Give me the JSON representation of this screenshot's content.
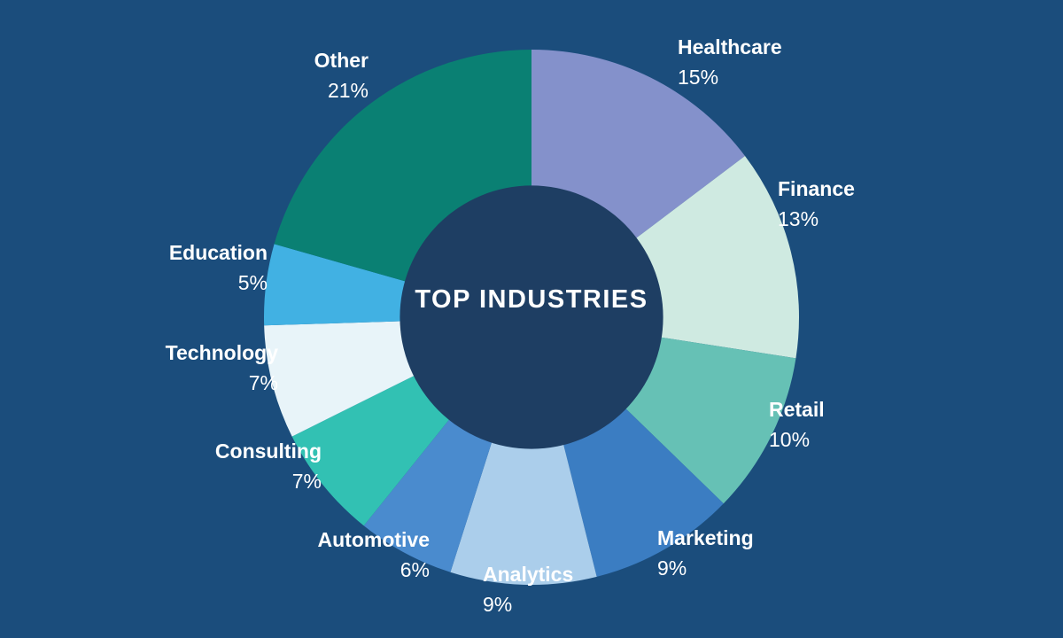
{
  "page": {
    "background_color": "#1b4d7c"
  },
  "chart_data": {
    "type": "pie",
    "subtype": "donut",
    "title": "TOP INDUSTRIES",
    "direction": "clockwise",
    "start_angle_deg": 0,
    "legend_position": "outside-labels",
    "hole_color": "#1e3e63",
    "background_color": "#1b4d7c",
    "label_text_color": "#ffffff",
    "slices": [
      {
        "name": "Healthcare",
        "value": 15,
        "percent_text": "15%",
        "color": "#8491cb"
      },
      {
        "name": "Finance",
        "value": 13,
        "percent_text": "13%",
        "color": "#cfeae1"
      },
      {
        "name": "Retail",
        "value": 10,
        "percent_text": "10%",
        "color": "#66c1b5"
      },
      {
        "name": "Marketing",
        "value": 9,
        "percent_text": "9%",
        "color": "#3b7dc2"
      },
      {
        "name": "Analytics",
        "value": 9,
        "percent_text": "9%",
        "color": "#abceeb"
      },
      {
        "name": "Automotive",
        "value": 6,
        "percent_text": "6%",
        "color": "#4a8bce"
      },
      {
        "name": "Consulting",
        "value": 7,
        "percent_text": "7%",
        "color": "#32c1b3"
      },
      {
        "name": "Technology",
        "value": 7,
        "percent_text": "7%",
        "color": "#e8f4f9"
      },
      {
        "name": "Education",
        "value": 5,
        "percent_text": "5%",
        "color": "#41b1e3"
      },
      {
        "name": "Other",
        "value": 21,
        "percent_text": "21%",
        "color": "#0a8073"
      }
    ]
  }
}
